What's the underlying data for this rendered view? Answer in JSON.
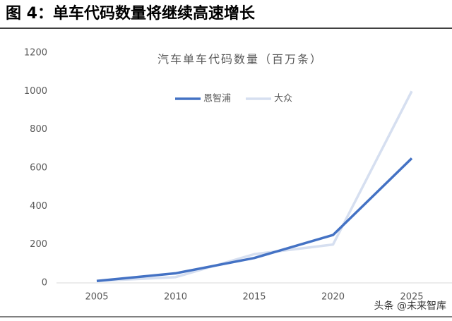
{
  "header": "图 4：单车代码数量将继续高速增长",
  "watermark": "头条 @未来智库",
  "chart_data": {
    "type": "line",
    "title": "汽车单车代码数量（百万条）",
    "categories": [
      "2005",
      "2010",
      "2015",
      "2020",
      "2025"
    ],
    "series": [
      {
        "name": "恩智浦",
        "color": "#4472c4",
        "values": [
          10,
          50,
          130,
          250,
          650
        ]
      },
      {
        "name": "大众",
        "color": "#d6dff0",
        "values": [
          10,
          30,
          150,
          200,
          1000
        ]
      }
    ],
    "ylim": [
      0,
      1200
    ],
    "yticks": [
      0,
      200,
      400,
      600,
      800,
      1000,
      1200
    ],
    "grid": false,
    "legend": "top"
  }
}
